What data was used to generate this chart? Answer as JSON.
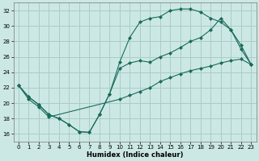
{
  "xlabel": "Humidex (Indice chaleur)",
  "background_color": "#cce8e5",
  "grid_color": "#aaccc8",
  "line_color": "#1a6b5a",
  "xlim": [
    -0.5,
    23.5
  ],
  "ylim": [
    15.0,
    33.0
  ],
  "yticks": [
    16,
    18,
    20,
    22,
    24,
    26,
    28,
    30,
    32
  ],
  "xticks": [
    0,
    1,
    2,
    3,
    4,
    5,
    6,
    7,
    8,
    9,
    10,
    11,
    12,
    13,
    14,
    15,
    16,
    17,
    18,
    19,
    20,
    21,
    22,
    23
  ],
  "line1_x": [
    0,
    1,
    2,
    3,
    4,
    5,
    6,
    7,
    8,
    9,
    10,
    11,
    12,
    13,
    14,
    15,
    16,
    17,
    18,
    19,
    20,
    21,
    22,
    23
  ],
  "line1_y": [
    22.3,
    20.8,
    19.8,
    18.5,
    18.0,
    17.2,
    16.3,
    16.2,
    18.5,
    21.2,
    25.3,
    28.5,
    30.5,
    31.0,
    31.2,
    32.0,
    32.2,
    32.2,
    31.8,
    31.0,
    30.5,
    29.5,
    27.0,
    25.0
  ],
  "line2_x": [
    0,
    1,
    2,
    3,
    4,
    5,
    6,
    7,
    8,
    9,
    10,
    11,
    12,
    13,
    14,
    15,
    16,
    17,
    18,
    19,
    20,
    21,
    22,
    23
  ],
  "line2_y": [
    22.3,
    20.8,
    19.8,
    18.5,
    18.0,
    17.2,
    16.3,
    16.2,
    18.5,
    21.2,
    24.5,
    25.2,
    25.5,
    25.3,
    26.0,
    26.5,
    27.2,
    28.0,
    28.5,
    29.5,
    31.0,
    29.5,
    27.5,
    25.0
  ],
  "line3_x": [
    0,
    1,
    2,
    3,
    10,
    11,
    12,
    13,
    14,
    15,
    16,
    17,
    18,
    19,
    20,
    21,
    22,
    23
  ],
  "line3_y": [
    22.3,
    20.5,
    19.5,
    18.2,
    20.5,
    21.0,
    21.5,
    22.0,
    22.8,
    23.3,
    23.8,
    24.2,
    24.5,
    24.8,
    25.2,
    25.5,
    25.7,
    25.0
  ]
}
